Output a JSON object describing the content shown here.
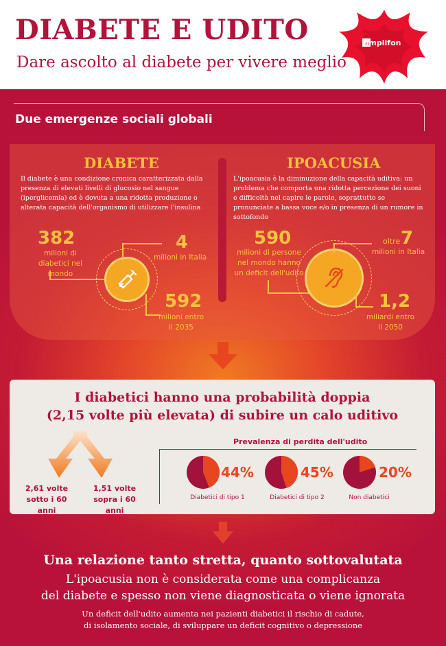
{
  "header": {
    "title": "DIABETE E UDITO",
    "subtitle": "Dare ascolto al diabete per vivere meglio",
    "brand": "amplifon"
  },
  "section": {
    "title": "Due emergenze sociali globali"
  },
  "diabete": {
    "title": "DIABETE",
    "text": "Il diabete è una condizione cronica caratterizzata dalla presenza di elevati livelli di glucosio nel sangue (iperglicemia) ed è dovuta a una ridotta produzione o alterata capacità dell'organismo di utilizzare l'insulina",
    "stat1_value": "382",
    "stat1_label": "milioni di diabetici nel mondo",
    "stat2_value": "4",
    "stat2_label": "milioni in Italia",
    "stat3_value": "592",
    "stat3_label": "milioni entro il 2035"
  },
  "ipoacusia": {
    "title": "IPOACUSIA",
    "text": "L'ipoacusia è la diminuzione della capacità uditiva: un problema che comporta una ridotta percezione dei suoni e difficoltà nel capire le parole, soprattutto se pronunciate a bassa voce e/o in presenza di un rumore in sottofondo",
    "stat1_value": "590",
    "stat1_label": "milioni di persone nel mondo hanno un deficit dell'udito",
    "stat2_prefix": "oltre",
    "stat2_value": "7",
    "stat2_label": "milioni in Italia",
    "stat3_value": "1,2",
    "stat3_label": "miliardi entro il 2050"
  },
  "probability": {
    "title_line1": "I diabetici hanno una probabilità doppia",
    "title_line2": "(2,15 volte più elevata) di subire un calo uditivo",
    "left_value": "2,61 volte",
    "left_label": "sotto i 60 anni",
    "right_value": "1,51 volte",
    "right_label": "sopra i 60 anni"
  },
  "chart_data": {
    "type": "pie",
    "title": "Prevalenza di perdita dell'udito",
    "series": [
      {
        "name": "Diabetici di tipo 1",
        "value": 44,
        "label": "44%"
      },
      {
        "name": "Diabetici di tipo 2",
        "value": 45,
        "label": "45%"
      },
      {
        "name": "Non diabetici",
        "value": 20,
        "label": "20%"
      }
    ],
    "colors": {
      "slice": "#e8461e",
      "rest": "#a3123a"
    }
  },
  "bottom": {
    "headline": "Una relazione tanto stretta, quanto sottovalutata",
    "sub_line1": "L'ipoacusia non è considerata come una complicanza",
    "sub_line2": "del diabete e spesso non viene diagnosticata o viene ignorata",
    "note_line1": "Un deficit dell'udito aumenta nei pazienti diabetici il rischio di cadute,",
    "note_line2": "di isolamento sociale, di sviluppare un deficit cognitivo o depressione"
  },
  "icons": [
    "syringe-icon",
    "ear-crossed-icon",
    "amplifon-logo"
  ]
}
